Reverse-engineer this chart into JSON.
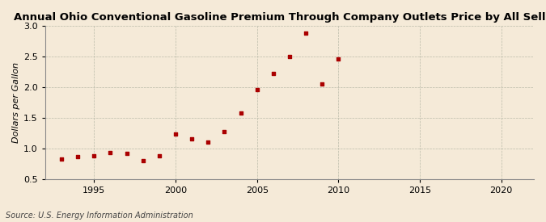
{
  "title": "Annual Ohio Conventional Gasoline Premium Through Company Outlets Price by All Sellers",
  "ylabel": "Dollars per Gallon",
  "source": "Source: U.S. Energy Information Administration",
  "background_color": "#f5ead8",
  "marker_color": "#aa0000",
  "years": [
    1993,
    1994,
    1995,
    1996,
    1997,
    1998,
    1999,
    2000,
    2001,
    2002,
    2003,
    2004,
    2005,
    2006,
    2007,
    2008,
    2009,
    2010
  ],
  "values": [
    0.83,
    0.86,
    0.88,
    0.93,
    0.92,
    0.8,
    0.88,
    1.23,
    1.15,
    1.1,
    1.28,
    1.57,
    1.96,
    2.22,
    2.5,
    2.88,
    2.05,
    2.46
  ],
  "xlim": [
    1992,
    2022
  ],
  "ylim": [
    0.5,
    3.0
  ],
  "xticks": [
    1995,
    2000,
    2005,
    2010,
    2015,
    2020
  ],
  "yticks": [
    0.5,
    1.0,
    1.5,
    2.0,
    2.5,
    3.0
  ],
  "title_fontsize": 9.5,
  "axis_fontsize": 8.0,
  "tick_fontsize": 8.0,
  "source_fontsize": 7.0
}
